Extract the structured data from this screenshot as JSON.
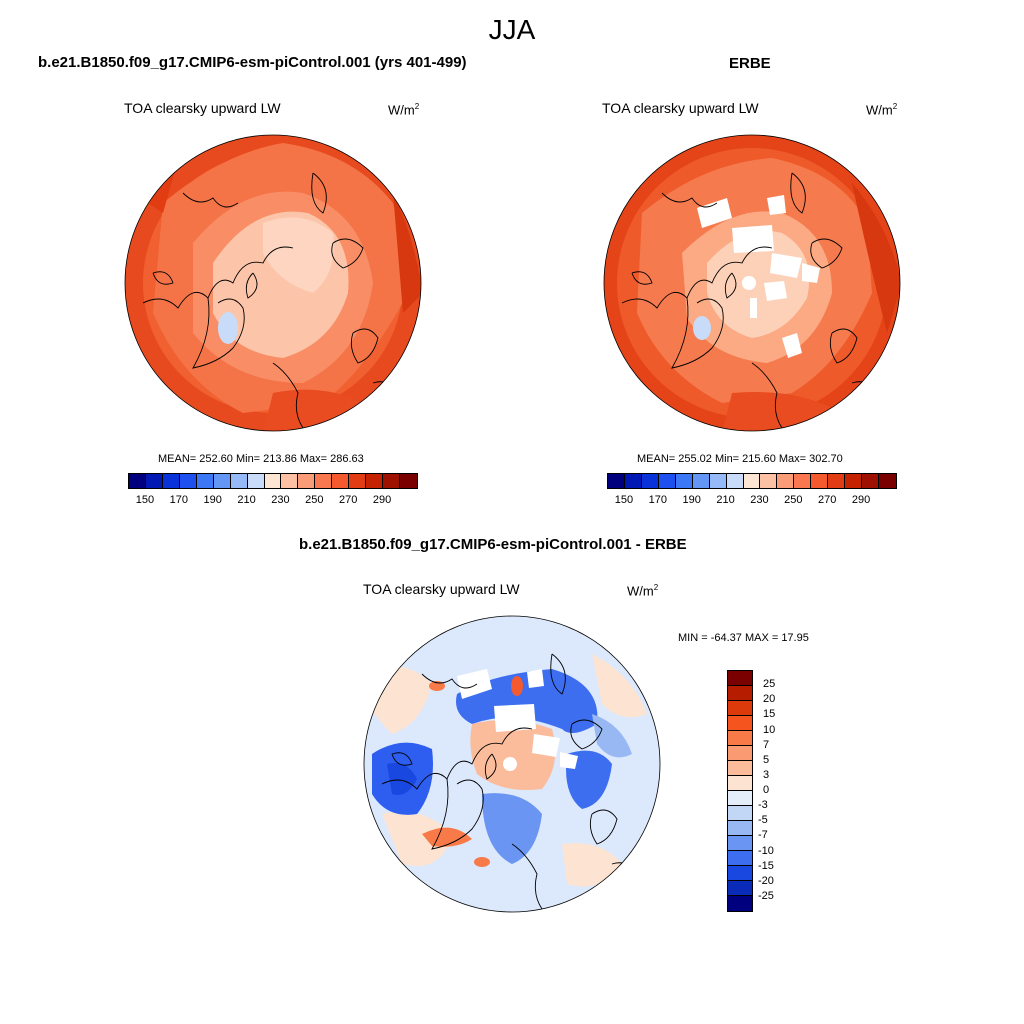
{
  "figure": {
    "season": "JJA"
  },
  "panels": [
    {
      "case_title": "b.e21.B1850.f09_g17.CMIP6-esm-piControl.001 (yrs 401-499)",
      "var_title": "TOA clearsky upward LW",
      "units_base": "W/m",
      "units_exp": "2",
      "stats": "MEAN= 252.60  Min= 213.86  Max= 286.63"
    },
    {
      "case_title": "ERBE",
      "var_title": "TOA clearsky upward LW",
      "units_base": "W/m",
      "units_exp": "2",
      "stats": "MEAN= 255.02  Min= 215.60  Max= 302.70"
    },
    {
      "case_title": "b.e21.B1850.f09_g17.CMIP6-esm-piControl.001 - ERBE",
      "var_title": "TOA clearsky upward LW",
      "units_base": "W/m",
      "units_exp": "2",
      "stats": "MIN = -64.37 MAX =  17.95"
    }
  ],
  "colorbar_abs": {
    "labels": [
      "150",
      "170",
      "190",
      "210",
      "230",
      "250",
      "270",
      "290"
    ],
    "colors": [
      "#00007f",
      "#0019b4",
      "#0a32d9",
      "#1e50f0",
      "#3c78f5",
      "#6496f5",
      "#96b9f7",
      "#c8dcfa",
      "#fde5d4",
      "#fcc0a4",
      "#fb9c78",
      "#f97850",
      "#f45a2d",
      "#e13c14",
      "#c42200",
      "#9e1100",
      "#7a0000"
    ]
  },
  "colorbar_diff": {
    "labels": [
      "25",
      "20",
      "15",
      "10",
      "7",
      "5",
      "3",
      "0",
      "-3",
      "-5",
      "-7",
      "-10",
      "-15",
      "-20",
      "-25"
    ],
    "colors": [
      "#7a0000",
      "#b51c00",
      "#dc3a0a",
      "#f5541e",
      "#f77a48",
      "#f99a72",
      "#fbbc9c",
      "#fde4d2",
      "#e4eefb",
      "#c2d6f6",
      "#98b8f4",
      "#6b95f2",
      "#3d6ef0",
      "#1848e0",
      "#0a2ab8",
      "#00007f"
    ]
  },
  "map_colors": {
    "abs_ocean": "#f05a2c",
    "abs_mid": "#f97d55",
    "abs_arctic": "#fcc4a8",
    "abs_low": "#c8dcfa",
    "abs_hot": "#e23d12",
    "diff_base": "#dce8fb",
    "diff_neg": "#2d5ef0",
    "diff_pos": "#fbbc9c",
    "coast": "#000000"
  }
}
